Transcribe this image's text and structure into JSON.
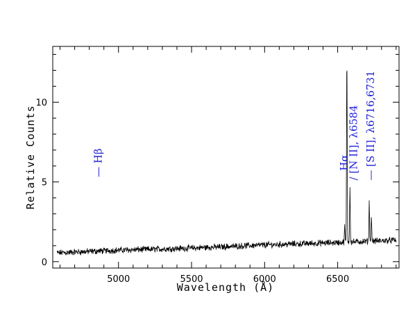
{
  "chart_data": {
    "type": "line",
    "title": "",
    "xlabel": "Wavelength (Å)",
    "ylabel": "Relative Counts",
    "xlim": [
      4550,
      6920
    ],
    "ylim": [
      -0.4,
      13.5
    ],
    "xticks": [
      5000,
      5500,
      6000,
      6500
    ],
    "yticks": [
      0,
      5,
      10
    ],
    "grid": false,
    "legend": "none",
    "line_color": "#000000",
    "annotation_color": "#1f1fd6",
    "spectrum": {
      "baseline": [
        [
          4580,
          0.55
        ],
        [
          5000,
          0.72
        ],
        [
          5500,
          0.85
        ],
        [
          6000,
          1.05
        ],
        [
          6500,
          1.2
        ],
        [
          6900,
          1.35
        ]
      ],
      "noise_amplitude": 0.16,
      "emission_peaks": [
        {
          "wavelength": 6548,
          "peak": 2.2
        },
        {
          "wavelength": 6563,
          "peak": 13.1
        },
        {
          "wavelength": 6584,
          "peak": 4.6
        },
        {
          "wavelength": 6716,
          "peak": 3.7
        },
        {
          "wavelength": 6731,
          "peak": 2.9
        }
      ]
    },
    "annotations": [
      {
        "label": "Hβ",
        "marker": "—",
        "wavelength": 4861,
        "y": 5.3
      },
      {
        "label": "Hα",
        "marker": "",
        "wavelength": 6545,
        "y": 5.7
      },
      {
        "label": "[N II], λ6584",
        "marker": "/",
        "wavelength": 6610,
        "y": 5.1
      },
      {
        "label": "[S II], λ6716,6731",
        "marker": "—",
        "wavelength": 6725,
        "y": 5.1
      }
    ]
  }
}
